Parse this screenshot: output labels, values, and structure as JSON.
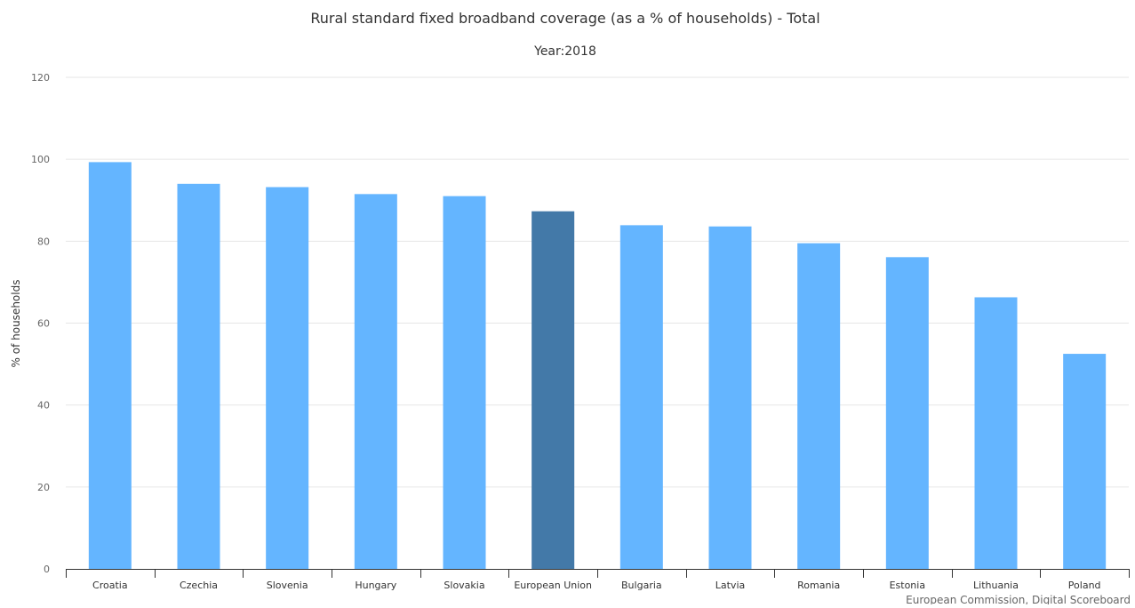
{
  "chart_data": {
    "type": "bar",
    "title": "Rural standard fixed broadband coverage (as a % of households) - Total",
    "subtitle": "Year:2018",
    "ylabel": "% of households",
    "xlabel": "",
    "ylim": [
      0,
      120
    ],
    "yticks": [
      0,
      20,
      40,
      60,
      80,
      100,
      120
    ],
    "grid": true,
    "legend": "none",
    "categories": [
      "Croatia",
      "Czechia",
      "Slovenia",
      "Hungary",
      "Slovakia",
      "European Union",
      "Bulgaria",
      "Latvia",
      "Romania",
      "Estonia",
      "Lithuania",
      "Poland"
    ],
    "values": [
      99.3,
      94.0,
      93.2,
      91.5,
      91.0,
      87.3,
      83.9,
      83.6,
      79.5,
      76.1,
      66.3,
      52.5
    ],
    "highlight_category": "European Union",
    "colors": {
      "bar": "#64b5ff",
      "highlight": "#4379a8",
      "grid": "#e6e6e6",
      "axis": "#333333"
    },
    "credits": "European Commission, Digital Scoreboard"
  }
}
